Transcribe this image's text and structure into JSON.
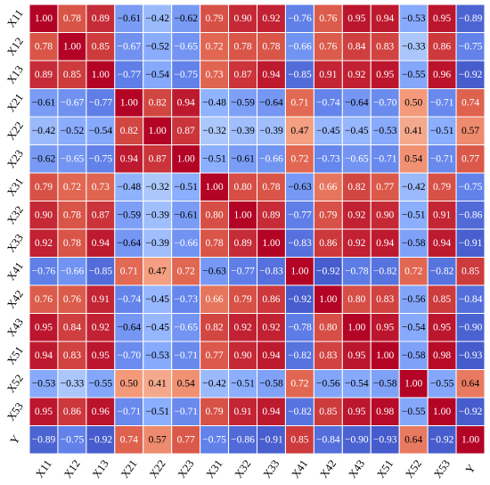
{
  "chart_data": {
    "type": "heatmap",
    "labels": [
      "X11",
      "X12",
      "X13",
      "X21",
      "X22",
      "X23",
      "X31",
      "X32",
      "X33",
      "X41",
      "X42",
      "X43",
      "X51",
      "X52",
      "X53",
      "Y"
    ],
    "values": [
      [
        1.0,
        0.78,
        0.89,
        -0.61,
        -0.42,
        -0.62,
        0.79,
        0.9,
        0.92,
        -0.76,
        0.76,
        0.95,
        0.94,
        -0.53,
        0.95,
        -0.89
      ],
      [
        0.78,
        1.0,
        0.85,
        -0.67,
        -0.52,
        -0.65,
        0.72,
        0.78,
        0.78,
        -0.66,
        0.76,
        0.84,
        0.83,
        -0.33,
        0.86,
        -0.75
      ],
      [
        0.89,
        0.85,
        1.0,
        -0.77,
        -0.54,
        -0.75,
        0.73,
        0.87,
        0.94,
        -0.85,
        0.91,
        0.92,
        0.95,
        -0.55,
        0.96,
        -0.92
      ],
      [
        -0.61,
        -0.67,
        -0.77,
        1.0,
        0.82,
        0.94,
        -0.48,
        -0.59,
        -0.64,
        0.71,
        -0.74,
        -0.64,
        -0.7,
        0.5,
        -0.71,
        0.74
      ],
      [
        -0.42,
        -0.52,
        -0.54,
        0.82,
        1.0,
        0.87,
        -0.32,
        -0.39,
        -0.39,
        0.47,
        -0.45,
        -0.45,
        -0.53,
        0.41,
        -0.51,
        0.57
      ],
      [
        -0.62,
        -0.65,
        -0.75,
        0.94,
        0.87,
        1.0,
        -0.51,
        -0.61,
        -0.66,
        0.72,
        -0.73,
        -0.65,
        -0.71,
        0.54,
        -0.71,
        0.77
      ],
      [
        0.79,
        0.72,
        0.73,
        -0.48,
        -0.32,
        -0.51,
        1.0,
        0.8,
        0.78,
        -0.63,
        0.66,
        0.82,
        0.77,
        -0.42,
        0.79,
        -0.75
      ],
      [
        0.9,
        0.78,
        0.87,
        -0.59,
        -0.39,
        -0.61,
        0.8,
        1.0,
        0.89,
        -0.77,
        0.79,
        0.92,
        0.9,
        -0.51,
        0.91,
        -0.86
      ],
      [
        0.92,
        0.78,
        0.94,
        -0.64,
        -0.39,
        -0.66,
        0.78,
        0.89,
        1.0,
        -0.83,
        0.86,
        0.92,
        0.94,
        -0.58,
        0.94,
        -0.91
      ],
      [
        -0.76,
        -0.66,
        -0.85,
        0.71,
        0.47,
        0.72,
        -0.63,
        -0.77,
        -0.83,
        1.0,
        -0.92,
        -0.78,
        -0.82,
        0.72,
        -0.82,
        0.85
      ],
      [
        0.76,
        0.76,
        0.91,
        -0.74,
        -0.45,
        -0.73,
        0.66,
        0.79,
        0.86,
        -0.92,
        1.0,
        0.8,
        0.83,
        -0.56,
        0.85,
        -0.84
      ],
      [
        0.95,
        0.84,
        0.92,
        -0.64,
        -0.45,
        -0.65,
        0.82,
        0.92,
        0.92,
        -0.78,
        0.8,
        1.0,
        0.95,
        -0.54,
        0.95,
        -0.9
      ],
      [
        0.94,
        0.83,
        0.95,
        -0.7,
        -0.53,
        -0.71,
        0.77,
        0.9,
        0.94,
        -0.82,
        0.83,
        0.95,
        1.0,
        -0.58,
        0.98,
        -0.93
      ],
      [
        -0.53,
        -0.33,
        -0.55,
        0.5,
        0.41,
        0.54,
        -0.42,
        -0.51,
        -0.58,
        0.72,
        -0.56,
        -0.54,
        -0.58,
        1.0,
        -0.55,
        0.64
      ],
      [
        0.95,
        0.86,
        0.96,
        -0.71,
        -0.51,
        -0.71,
        0.79,
        0.91,
        0.94,
        -0.82,
        0.85,
        0.95,
        0.98,
        -0.55,
        1.0,
        -0.92
      ],
      [
        -0.89,
        -0.75,
        -0.92,
        0.74,
        0.57,
        0.77,
        -0.75,
        -0.86,
        -0.91,
        0.85,
        -0.84,
        -0.9,
        -0.93,
        0.64,
        -0.92,
        1.0
      ]
    ],
    "value_range": [
      -1,
      1
    ],
    "colormap": "coolwarm",
    "number_format": "2 decimals",
    "legend": "none",
    "grid": "white cell borders"
  }
}
